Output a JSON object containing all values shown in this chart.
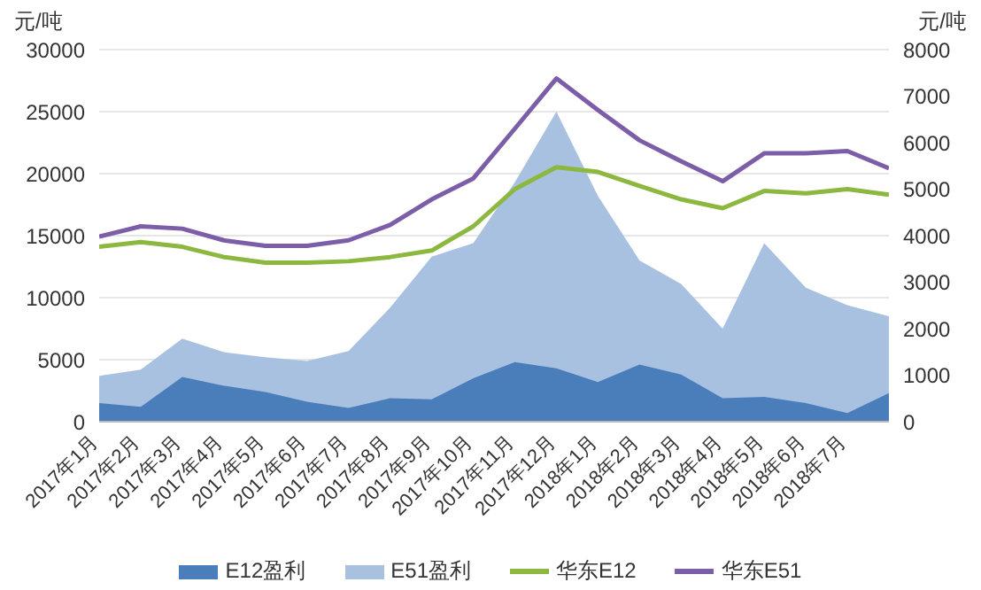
{
  "chart_data": {
    "type": "area",
    "ylabel": "元/吨",
    "y2label": "元/吨",
    "categories": [
      "2017年1月",
      "2017年2月",
      "2017年3月",
      "2017年4月",
      "2017年5月",
      "2017年6月",
      "2017年7月",
      "2017年8月",
      "2017年9月",
      "2017年10月",
      "2017年11月",
      "2017年12月",
      "2018年1月",
      "2018年2月",
      "2018年3月",
      "2018年4月",
      "2018年5月",
      "2018年6月",
      "2018年7月",
      null
    ],
    "series": [
      {
        "name": "E12盈利",
        "color": "#4a7ebb",
        "values": [
          1500,
          1200,
          3600,
          2900,
          2400,
          1600,
          1100,
          1900,
          1800,
          3500,
          4800,
          4300,
          3200,
          4600,
          3800,
          1900,
          2000,
          1500,
          700,
          2300
        ]
      },
      {
        "name": "E51盈利",
        "color": "#a9c1e0",
        "values": [
          3700,
          4200,
          6700,
          5600,
          5200,
          4900,
          5700,
          9200,
          13300,
          14400,
          19300,
          25000,
          18200,
          13000,
          11100,
          7500,
          14400,
          10800,
          9400,
          8500
        ]
      },
      {
        "name": "华东E12",
        "type": "line",
        "axis": "y2",
        "color": "#8db840",
        "values": [
          3760,
          3860,
          3760,
          3540,
          3420,
          3420,
          3450,
          3540,
          3680,
          4200,
          5000,
          5470,
          5370,
          5070,
          4780,
          4590,
          4960,
          4910,
          5000,
          4880
        ]
      },
      {
        "name": "华东E51",
        "type": "line",
        "axis": "y2",
        "color": "#7b5ea7",
        "values": [
          3980,
          4200,
          4150,
          3900,
          3780,
          3780,
          3900,
          4230,
          4780,
          5230,
          6300,
          7380,
          6700,
          6050,
          5600,
          5170,
          5770,
          5770,
          5820,
          5450
        ]
      }
    ],
    "ylim": [
      0,
      30000
    ],
    "yticks": [
      0,
      5000,
      10000,
      15000,
      20000,
      25000,
      30000
    ],
    "y2lim": [
      0,
      8000
    ],
    "y2ticks": [
      0,
      1000,
      2000,
      3000,
      4000,
      5000,
      6000,
      7000,
      8000
    ],
    "grid": "y",
    "legend": "bottom",
    "marker": "none"
  }
}
